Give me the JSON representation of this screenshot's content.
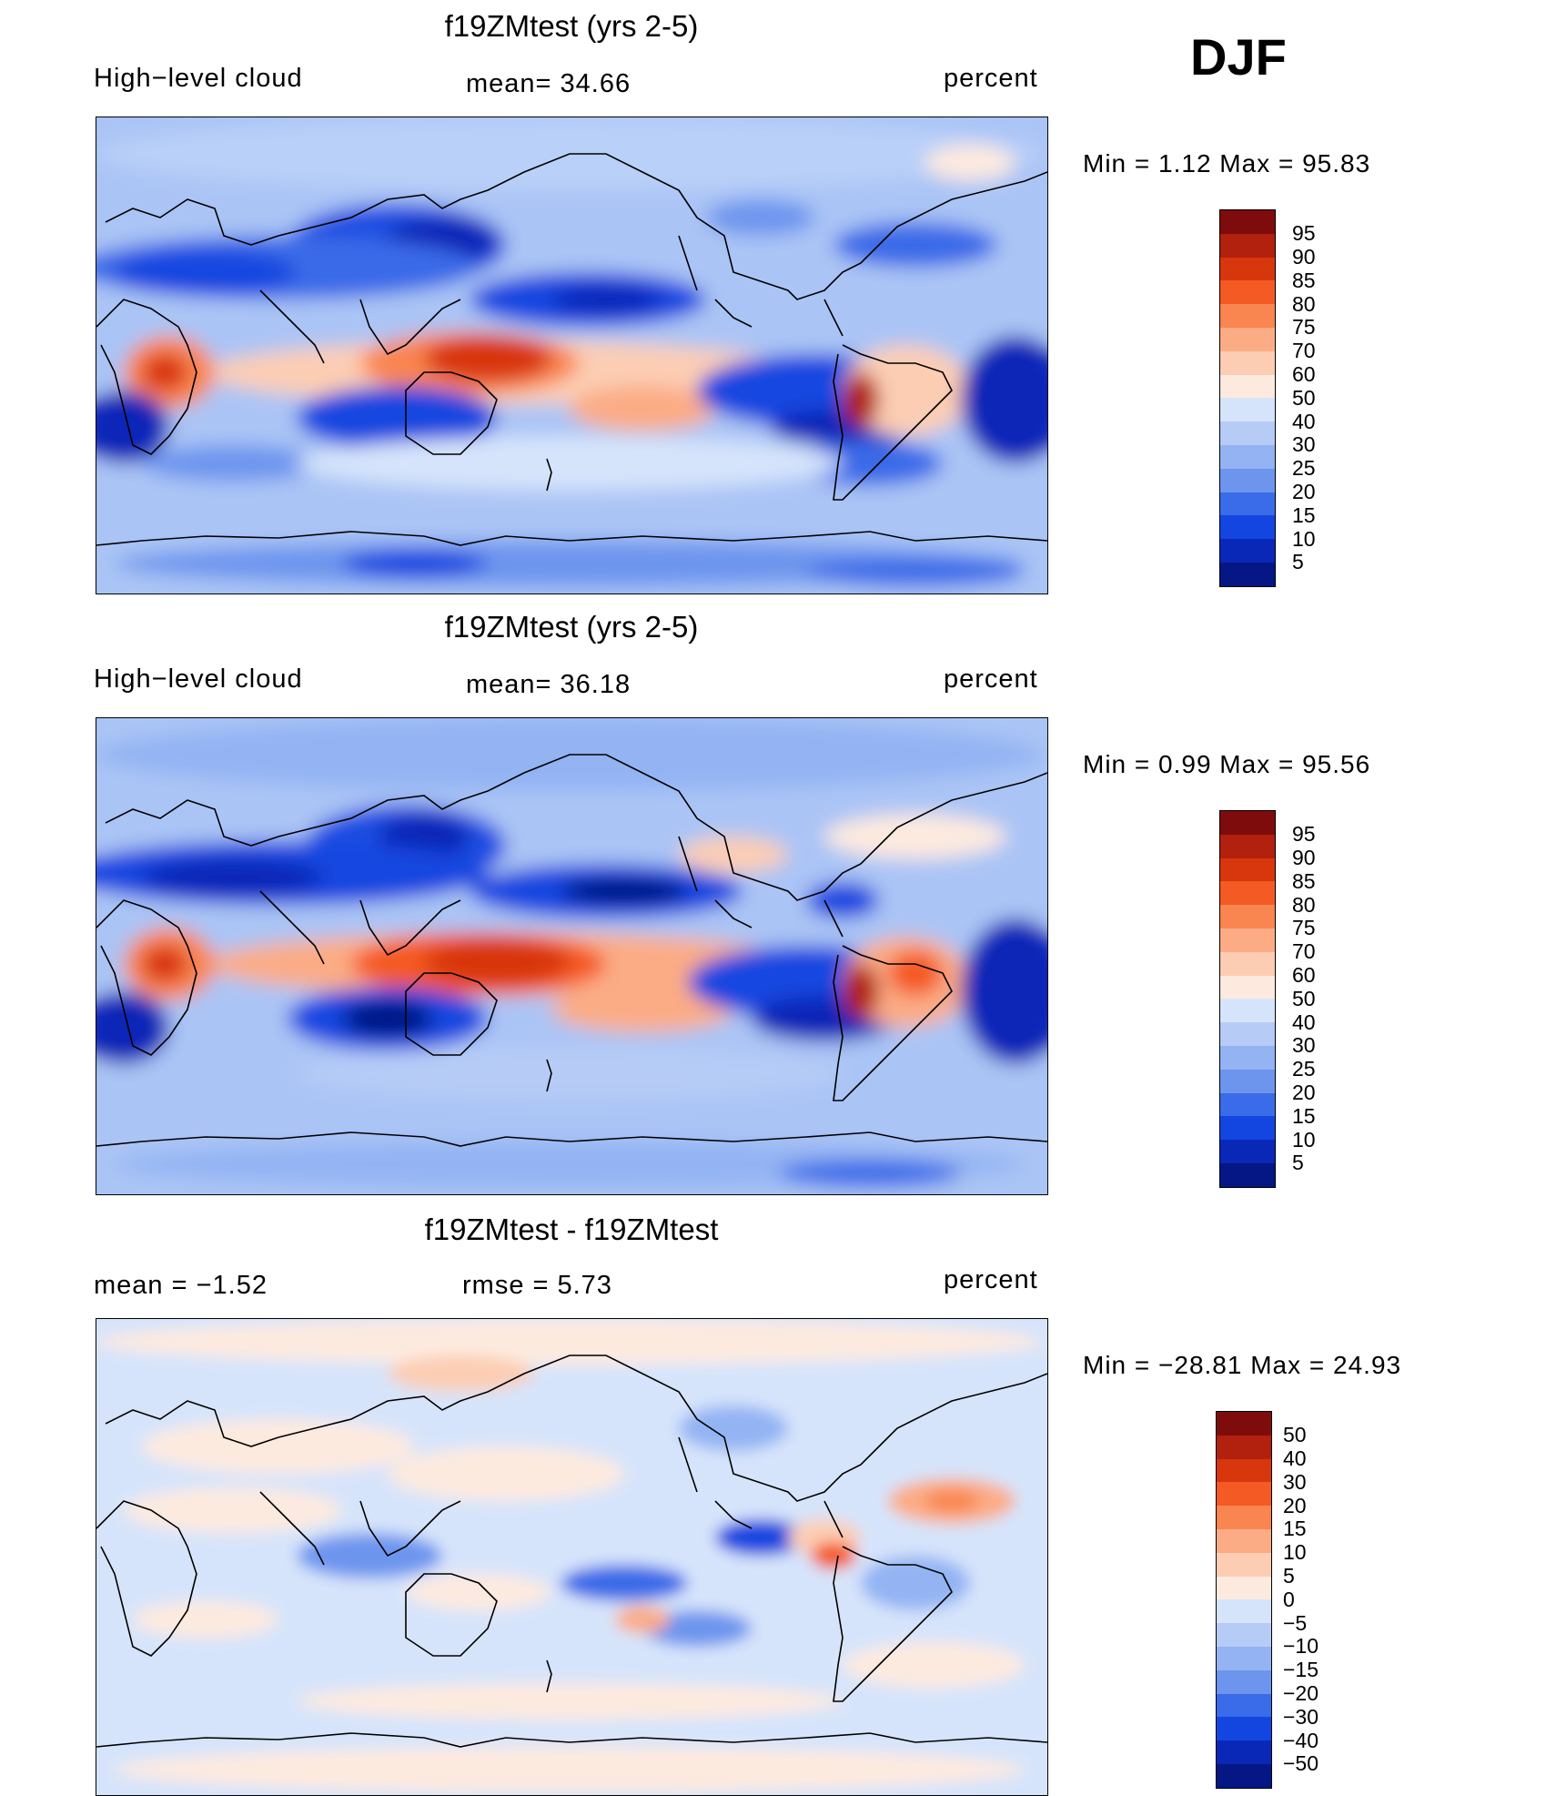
{
  "season": "DJF",
  "panels": [
    {
      "title": "f19ZMtest (yrs 2-5)",
      "left_label": "High−level cloud",
      "center_label": "mean=   34.66",
      "right_label": "percent",
      "minmax": "Min  =     1.12  Max  =    95.83",
      "colorbar": {
        "ticks": [
          "95",
          "90",
          "85",
          "80",
          "75",
          "70",
          "60",
          "50",
          "40",
          "30",
          "25",
          "20",
          "15",
          "10",
          "5"
        ],
        "colors": [
          "#7f0c0c",
          "#b1210e",
          "#d8360c",
          "#f45a23",
          "#f98550",
          "#fbac85",
          "#fccdb3",
          "#fdeadf",
          "#d6e4fb",
          "#b6ccf7",
          "#93b3f3",
          "#6d95ee",
          "#3a6be8",
          "#1346e0",
          "#0a28b8",
          "#041785"
        ]
      }
    },
    {
      "title": "f19ZMtest (yrs 2-5)",
      "left_label": "High−level cloud",
      "center_label": "mean=   36.18",
      "right_label": "percent",
      "minmax": "Min  =     0.99  Max  =    95.56",
      "colorbar": {
        "ticks": [
          "95",
          "90",
          "85",
          "80",
          "75",
          "70",
          "60",
          "50",
          "40",
          "30",
          "25",
          "20",
          "15",
          "10",
          "5"
        ],
        "colors": [
          "#7f0c0c",
          "#b1210e",
          "#d8360c",
          "#f45a23",
          "#f98550",
          "#fbac85",
          "#fccdb3",
          "#fdeadf",
          "#d6e4fb",
          "#b6ccf7",
          "#93b3f3",
          "#6d95ee",
          "#3a6be8",
          "#1346e0",
          "#0a28b8",
          "#041785"
        ]
      }
    },
    {
      "title": "f19ZMtest - f19ZMtest",
      "left_label": "mean  =   −1.52",
      "center_label": "rmse  =    5.73",
      "right_label": "percent",
      "minmax": "Min  = −28.81  Max  =    24.93",
      "colorbar": {
        "ticks": [
          "50",
          "40",
          "30",
          "20",
          "15",
          "10",
          "5",
          "0",
          "−5",
          "−10",
          "−15",
          "−20",
          "−30",
          "−40",
          "−50"
        ],
        "colors": [
          "#7f0c0c",
          "#b1210e",
          "#d8360c",
          "#f45a23",
          "#f98550",
          "#fbac85",
          "#fccdb3",
          "#fdeadf",
          "#d6e4fb",
          "#b6ccf7",
          "#93b3f3",
          "#6d95ee",
          "#3a6be8",
          "#1346e0",
          "#0a28b8",
          "#041785"
        ]
      }
    }
  ]
}
